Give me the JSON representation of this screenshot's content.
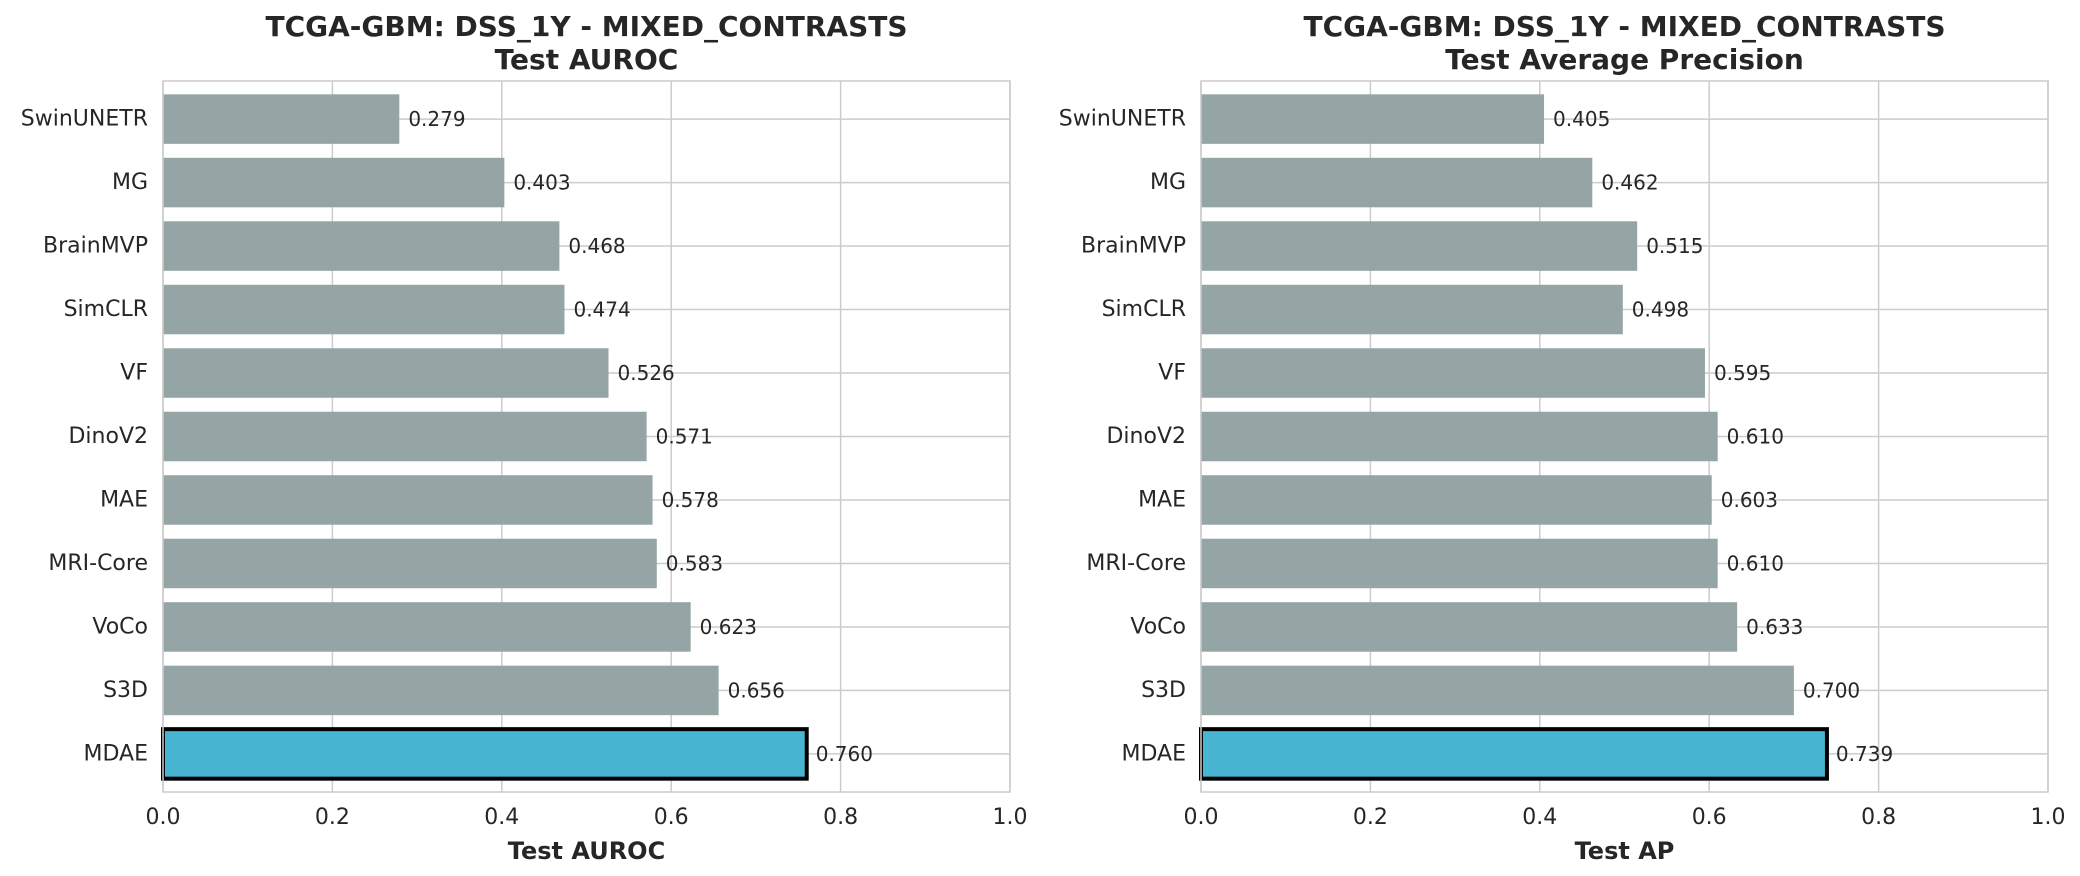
{
  "colors": {
    "bar_default": "#95a5a6",
    "bar_highlight": "#48b6d2",
    "highlight_edge": "#000000",
    "grid": "#cccccc",
    "frame": "#cccccc"
  },
  "chart_data": [
    {
      "type": "bar",
      "orientation": "horizontal",
      "title": [
        "TCGA-GBM: DSS_1Y - MIXED_CONTRASTS",
        "Test AUROC"
      ],
      "xlabel": "Test AUROC",
      "ylabel": "",
      "xlim": [
        0,
        1
      ],
      "xticks": [
        "0.0",
        "0.2",
        "0.4",
        "0.6",
        "0.8",
        "1.0"
      ],
      "grid": true,
      "categories": [
        "SwinUNETR",
        "MG",
        "BrainMVP",
        "SimCLR",
        "VF",
        "DinoV2",
        "MAE",
        "MRI-Core",
        "VoCo",
        "S3D",
        "MDAE"
      ],
      "values": [
        0.279,
        0.403,
        0.468,
        0.474,
        0.526,
        0.571,
        0.578,
        0.583,
        0.623,
        0.656,
        0.76
      ],
      "labels": [
        "0.279",
        "0.403",
        "0.468",
        "0.474",
        "0.526",
        "0.571",
        "0.578",
        "0.583",
        "0.623",
        "0.656",
        "0.760"
      ],
      "highlight": "MDAE"
    },
    {
      "type": "bar",
      "orientation": "horizontal",
      "title": [
        "TCGA-GBM: DSS_1Y - MIXED_CONTRASTS",
        "Test Average Precision"
      ],
      "xlabel": "Test AP",
      "ylabel": "",
      "xlim": [
        0,
        1
      ],
      "xticks": [
        "0.0",
        "0.2",
        "0.4",
        "0.6",
        "0.8",
        "1.0"
      ],
      "grid": true,
      "categories": [
        "SwinUNETR",
        "MG",
        "BrainMVP",
        "SimCLR",
        "VF",
        "DinoV2",
        "MAE",
        "MRI-Core",
        "VoCo",
        "S3D",
        "MDAE"
      ],
      "values": [
        0.405,
        0.462,
        0.515,
        0.498,
        0.595,
        0.61,
        0.603,
        0.61,
        0.633,
        0.7,
        0.739
      ],
      "labels": [
        "0.405",
        "0.462",
        "0.515",
        "0.498",
        "0.595",
        "0.610",
        "0.603",
        "0.610",
        "0.633",
        "0.700",
        "0.739"
      ],
      "highlight": "MDAE"
    }
  ]
}
